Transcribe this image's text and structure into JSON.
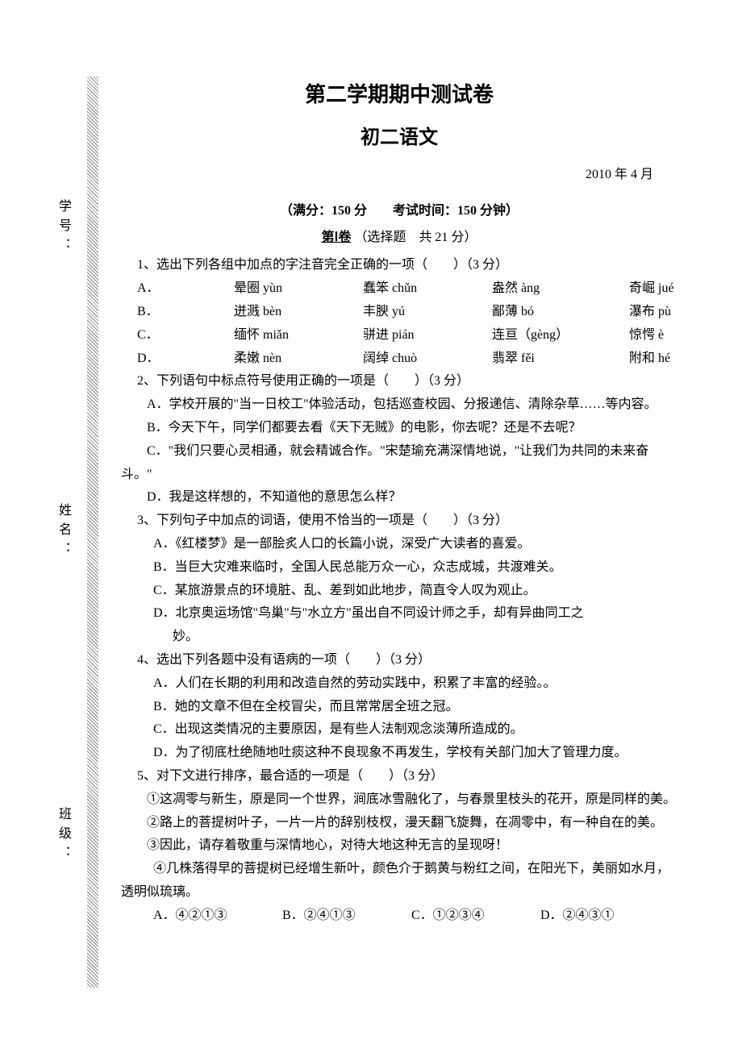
{
  "vertical": {
    "student_id": "学号：",
    "name": "姓名：",
    "class": "班级："
  },
  "header": {
    "title_main": "第二学期期中测试卷",
    "title_sub": "初二语文",
    "date": "2010 年 4 月",
    "exam_info": "（满分：150 分　　考试时间：150 分钟）",
    "section_num": "第Ⅰ卷",
    "section_desc": "（选择题　共 21 分）"
  },
  "q1": {
    "stem": "1、选出下列各组中加点的字注音完全正确的一项（　　）（3 分）",
    "rows": [
      {
        "l": "A．",
        "a": "晕圈 yùn",
        "b": "蠢笨 chǔn",
        "c": "盎然 àng",
        "d": "奇崛 jué"
      },
      {
        "l": "B．",
        "a": "迸溅 bèn",
        "b": "丰腴 yú",
        "c": "鄙薄 bó",
        "d": "瀑布 pù"
      },
      {
        "l": "C．",
        "a": "缅怀 miǎn",
        "b": "骈进 pián",
        "c": "连亘（gèng）",
        "d": "惊愕 è"
      },
      {
        "l": "D．",
        "a": "柔嫩 nèn",
        "b": "阔绰 chuò",
        "c": "翡翠 fěi",
        "d": "附和 hé"
      }
    ]
  },
  "q2": {
    "stem": "2、下列语句中标点符号使用正确的一项是（　　）（3 分）",
    "a": "A．学校开展的\"当一日校工\"体验活动，包括巡查校园、分报递信、清除杂草……等内容。",
    "b": "B．今天下午，同学们都要去看《天下无贼》的电影，你去呢？还是不去呢？",
    "c": "C．\"我们只要心灵相通，就会精诚合作。\"宋楚瑜充满深情地说，\"让我们为共同的未来奋斗。\"",
    "d": "D．我是这样想的，不知道他的意思怎么样？"
  },
  "q3": {
    "stem": "3、下列句子中加点的词语，使用不恰当的一项是（　　）（3 分）",
    "a": "A．《红楼梦》是一部脍炙人口的长篇小说，深受广大读者的喜爱。",
    "b": "B．当巨大灾难来临时，全国人民总能万众一心，众志成城，共渡难关。",
    "c": "C．某旅游景点的环境脏、乱、差到如此地步，简直令人叹为观止。",
    "d1": "D．北京奥运场馆\"鸟巢\"与\"水立方\"虽出自不同设计师之手，却有异曲同工之",
    "d2": "妙。"
  },
  "q4": {
    "stem": "4、选出下列各题中没有语病的一项（　　）（3 分）",
    "a": "A．人们在长期的利用和改造自然的劳动实践中，积累了丰富的经验。。",
    "b": "B．她的文章不但在全校冒尖，而且常常居全班之冠。",
    "c": "C．出现这类情况的主要原因，是有些人法制观念淡薄所造成的。",
    "d": "D．为了彻底杜绝随地吐痰这种不良现象不再发生，学校有关部门加大了管理力度。"
  },
  "q5": {
    "stem": "5、对下文进行排序，最合适的一项是（　　）（3 分）",
    "p1": "①这凋零与新生，原是同一个世界，涧底冰雪融化了，与春景里枝头的花开，原是同样的美。",
    "p2": "②路上的菩提树叶子，一片一片的辞别枝杈，漫天翻飞旋舞，在凋零中，有一种自在的美。",
    "p3": "③因此，请存着敬重与深情地心，对待大地这种无言的呈现呀！",
    "p4": "④几株落得早的菩提树已经增生新叶，颜色介于鹅黄与粉红之间，在阳光下，美丽如水月，透明似琉璃。",
    "opts": {
      "a": "A．④②①③",
      "b": "B．②④①③",
      "c": "C．①②③④",
      "d": "D．②④③①"
    }
  }
}
